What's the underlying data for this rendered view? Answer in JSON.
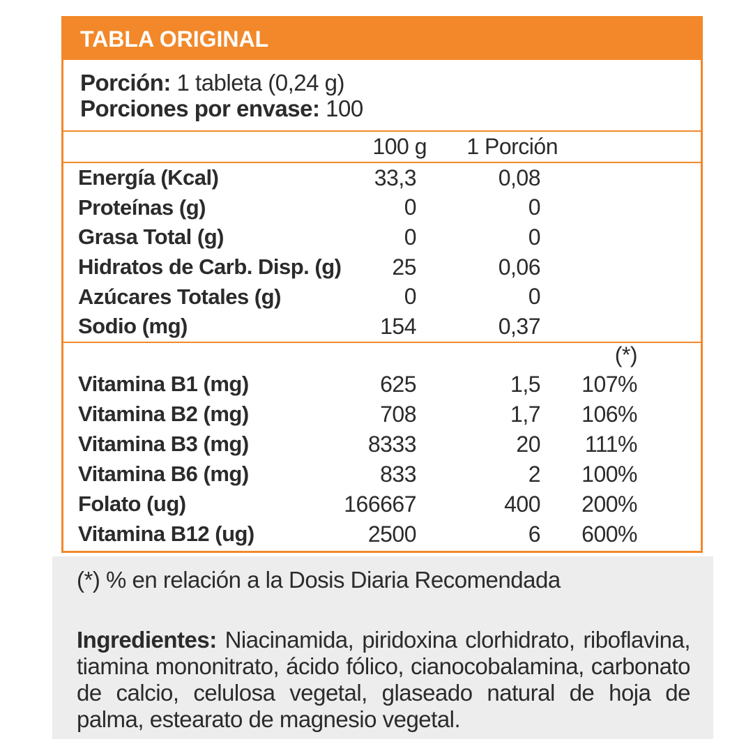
{
  "colors": {
    "accent_orange": "#f2882a",
    "panel_gray": "#ededed",
    "text": "#2b2b2b"
  },
  "header": {
    "title": "TABLA ORIGINAL"
  },
  "serving": {
    "portion_label": "Porción:",
    "portion_value": "1 tableta (0,24 g)",
    "servings_label": "Porciones por envase:",
    "servings_value": "100"
  },
  "table": {
    "col_headers": [
      "100 g",
      "1 Porción"
    ],
    "dv_header": "(*)",
    "macros": [
      {
        "label": "Energía (Kcal)",
        "per100": "33,3",
        "portion": "0,08"
      },
      {
        "label": "Proteínas (g)",
        "per100": "0",
        "portion": "0"
      },
      {
        "label": "Grasa Total (g)",
        "per100": "0",
        "portion": "0"
      },
      {
        "label": "Hidratos de Carb. Disp. (g)",
        "per100": "25",
        "portion": "0,06"
      },
      {
        "label": "Azúcares Totales (g)",
        "per100": "0",
        "portion": "0"
      },
      {
        "label": "Sodio (mg)",
        "per100": "154",
        "portion": "0,37"
      }
    ],
    "vitamins": [
      {
        "label": "Vitamina B1 (mg)",
        "per100": "625",
        "portion": "1,5",
        "dv": "107%"
      },
      {
        "label": "Vitamina B2 (mg)",
        "per100": "708",
        "portion": "1,7",
        "dv": "106%"
      },
      {
        "label": "Vitamina B3 (mg)",
        "per100": "8333",
        "portion": "20",
        "dv": "111%"
      },
      {
        "label": "Vitamina B6 (mg)",
        "per100": "833",
        "portion": "2",
        "dv": "100%"
      },
      {
        "label": "Folato (ug)",
        "per100": "166667",
        "portion": "400",
        "dv": "200%"
      },
      {
        "label": "Vitamina B12 (ug)",
        "per100": "2500",
        "portion": "6",
        "dv": "600%"
      }
    ]
  },
  "footnote": "(*) % en relación a la Dosis Diaria Recomendada",
  "ingredients": {
    "label": "Ingredientes:",
    "text": "Niacinamida, piridoxina clorhidrato, riboflavina, tiamina mononitrato, ácido fólico, cianocobalamina, carbonato de calcio, celulosa vegetal, glaseado natural de hoja de palma, estearato de magnesio vegetal."
  }
}
